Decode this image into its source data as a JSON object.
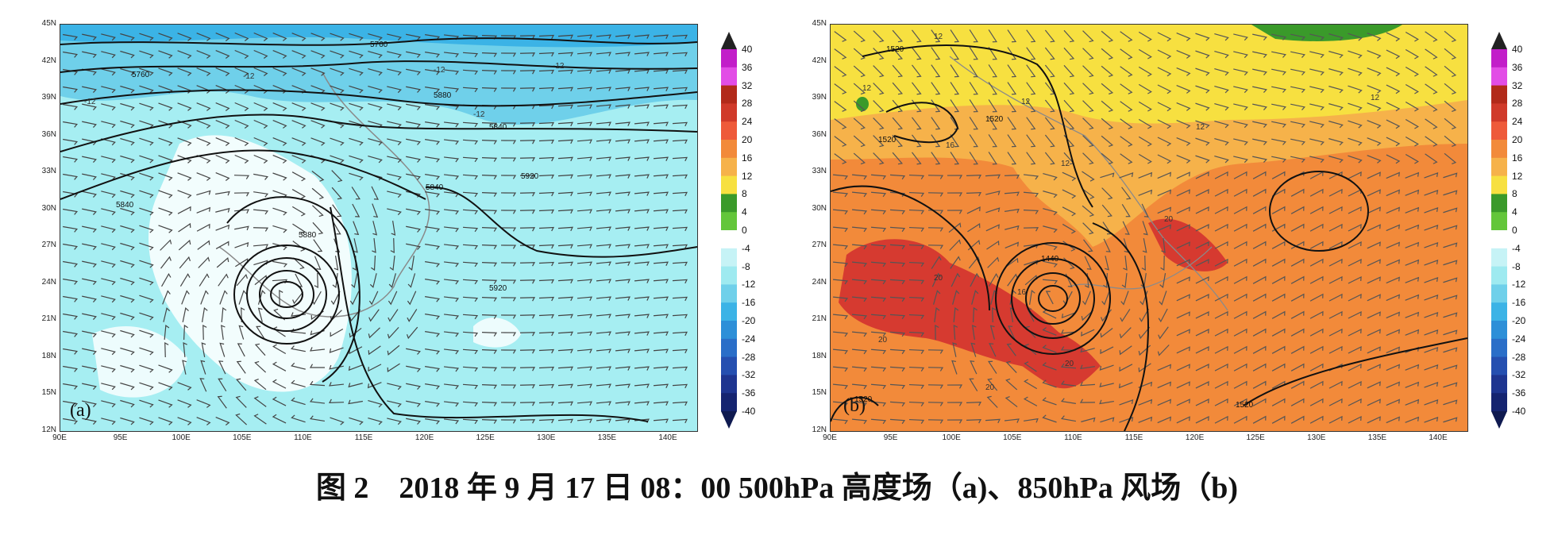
{
  "caption": "图 2　2018 年 9 月 17 日 08：00 500hPa 高度场（a)、850hPa 风场（b)",
  "lat_labels": [
    "45N",
    "42N",
    "39N",
    "36N",
    "33N",
    "30N",
    "27N",
    "24N",
    "21N",
    "18N",
    "15N",
    "12N"
  ],
  "lon_labels": [
    "90E",
    "95E",
    "100E",
    "105E",
    "110E",
    "115E",
    "120E",
    "125E",
    "130E",
    "135E",
    "140E"
  ],
  "colorbar_labels": [
    "40",
    "36",
    "32",
    "28",
    "24",
    "20",
    "16",
    "12",
    "8",
    "4",
    "0",
    "-4",
    "-8",
    "-12",
    "-16",
    "-20",
    "-24",
    "-28",
    "-32",
    "-36",
    "-40"
  ],
  "colorbar_colors": [
    "#c21ec9",
    "#e24de6",
    "#b22a1a",
    "#d03a2a",
    "#ee5a3a",
    "#f28a3a",
    "#f6b24a",
    "#f7e040",
    "#3a9a2a",
    "#63c63a",
    "#ffffff",
    "#c6f3f6",
    "#9eeaf0",
    "#6fd0ea",
    "#3bb3e6",
    "#2d8fd8",
    "#2a6ec8",
    "#254fb0",
    "#1e3590",
    "#152470"
  ],
  "panel_a": {
    "tag": "(a)",
    "contour_labels": [
      "5760",
      "5760",
      "5840",
      "5840",
      "5880",
      "5840",
      "5920",
      "5920",
      "5880"
    ],
    "temp_labels": [
      "-12",
      "-12",
      "-12",
      "-12",
      "-12"
    ]
  },
  "panel_b": {
    "tag": "(b)",
    "contour_labels": [
      "1520",
      "1520",
      "1520",
      "1440",
      "1520",
      "1520"
    ],
    "temp_labels": [
      "12",
      "12",
      "12",
      "12",
      "12",
      "12",
      "16",
      "16",
      "20",
      "20",
      "20",
      "20",
      "20"
    ]
  }
}
